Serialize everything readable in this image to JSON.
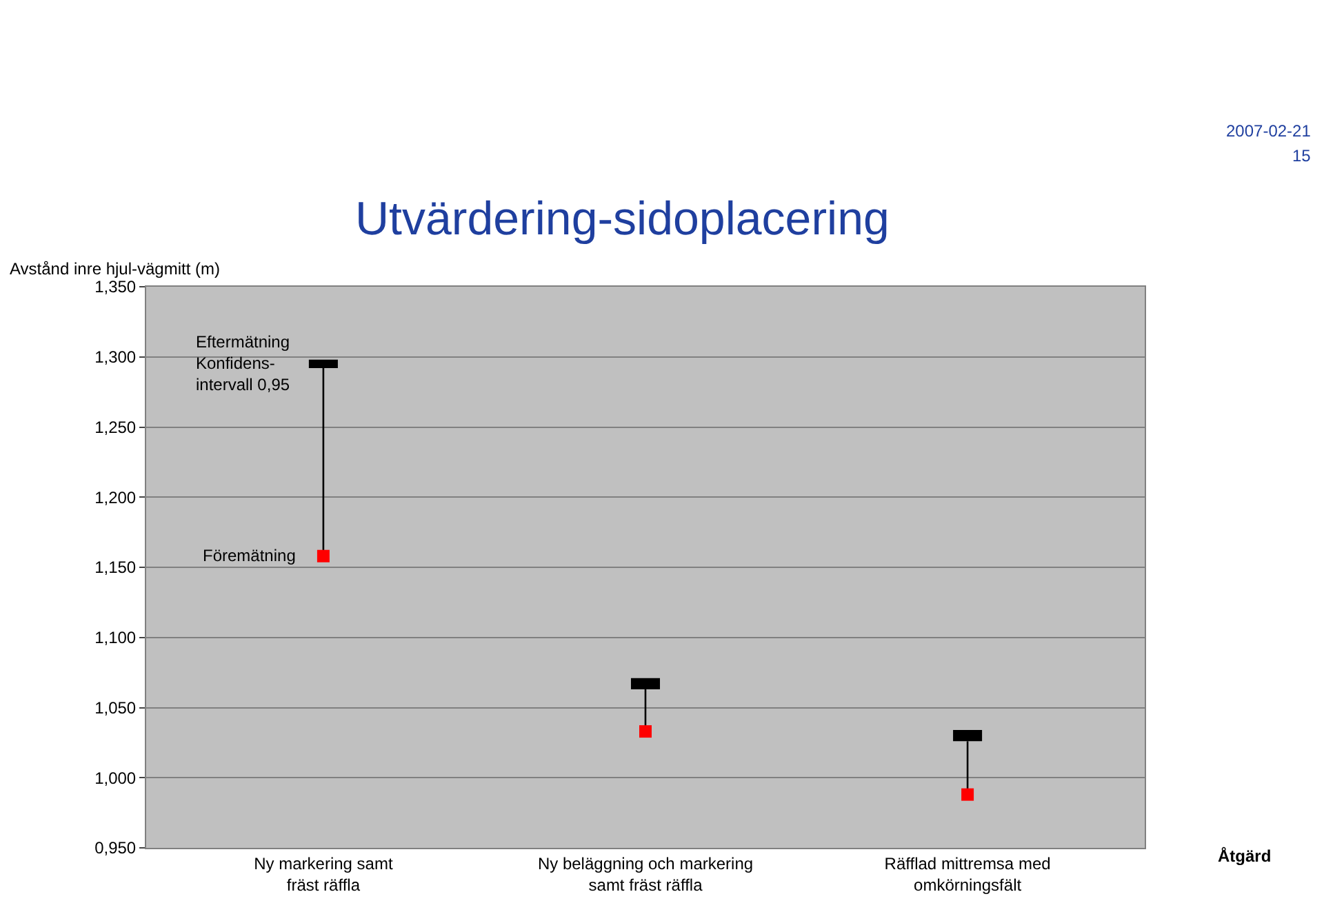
{
  "chart_data": {
    "type": "scatter",
    "title": "Utvärdering-sidoplacering",
    "ylabel": "Avstånd inre hjul-vägmitt (m)",
    "xlabel": "Åtgärd",
    "annotations": [
      "2007-02-21",
      "15"
    ],
    "categories": [
      "Ny markering samt\nfräst räffla",
      "Ny beläggning och markering\nsamt fräst räffla",
      "Räfflad mittremsa med\nomkörningsfält"
    ],
    "series": [
      {
        "name": "Föremätning",
        "color": "#ff0000",
        "marker": "square",
        "values": [
          1.158,
          1.033,
          0.988
        ],
        "errors": [
          [
            1.158,
            1.292
          ],
          [
            1.033,
            1.063
          ],
          [
            0.988,
            1.026
          ]
        ]
      },
      {
        "name": "Eftermätning\nKonfidens-\nintervall 0,95",
        "type": "bar",
        "color": "#000000",
        "base": [
          1.292,
          1.063,
          1.026
        ],
        "values": [
          0.006,
          0.008,
          0.008
        ]
      }
    ],
    "ylim": [
      0.95,
      1.35
    ],
    "yticks": [
      {
        "value": 0.95,
        "label": "0,950"
      },
      {
        "value": 1.0,
        "label": "1,000"
      },
      {
        "value": 1.05,
        "label": "1,050"
      },
      {
        "value": 1.1,
        "label": "1,100"
      },
      {
        "value": 1.15,
        "label": "1,150"
      },
      {
        "value": 1.2,
        "label": "1,200"
      },
      {
        "value": 1.25,
        "label": "1,250"
      },
      {
        "value": 1.3,
        "label": "1,300"
      },
      {
        "value": 1.35,
        "label": "1,350"
      }
    ],
    "grid": "y",
    "legend": "top left"
  }
}
